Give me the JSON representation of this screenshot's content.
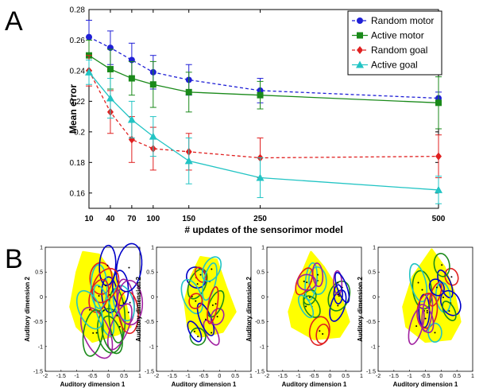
{
  "panels": {
    "a_letter": "A",
    "b_letter": "B"
  },
  "chart_data": [
    {
      "type": "line",
      "panel": "A",
      "xlabel": "# updates of the sensorimor model",
      "ylabel": "Mean error",
      "x": [
        10,
        40,
        70,
        100,
        150,
        250,
        500
      ],
      "xticks": [
        10,
        40,
        70,
        100,
        150,
        250,
        500
      ],
      "yticks": [
        0.16,
        0.18,
        0.2,
        0.22,
        0.24,
        0.26,
        0.28
      ],
      "ylim": [
        0.15,
        0.28
      ],
      "grid": false,
      "legend_position": "top-right",
      "series": [
        {
          "name": "Random motor",
          "color": "#1f1fd6",
          "marker": "circle",
          "dash": true,
          "values": [
            0.262,
            0.255,
            0.247,
            0.239,
            0.234,
            0.227,
            0.222
          ],
          "err": [
            0.011,
            0.011,
            0.011,
            0.011,
            0.01,
            0.008,
            0.004
          ]
        },
        {
          "name": "Active motor",
          "color": "#1a8a1a",
          "marker": "square",
          "dash": false,
          "values": [
            0.25,
            0.241,
            0.235,
            0.231,
            0.226,
            0.224,
            0.219
          ],
          "err": [
            0.01,
            0.013,
            0.011,
            0.015,
            0.013,
            0.009,
            0.017
          ]
        },
        {
          "name": "Random goal",
          "color": "#e02020",
          "marker": "diamond",
          "dash": true,
          "values": [
            0.24,
            0.213,
            0.195,
            0.189,
            0.187,
            0.183,
            0.184
          ],
          "err": [
            0.01,
            0.014,
            0.015,
            0.014,
            0.012,
            0.013,
            0.014
          ]
        },
        {
          "name": "Active goal",
          "color": "#22c4c4",
          "marker": "triangle",
          "dash": false,
          "values": [
            0.239,
            0.222,
            0.208,
            0.197,
            0.181,
            0.17,
            0.162
          ],
          "err": [
            0.008,
            0.013,
            0.012,
            0.013,
            0.015,
            0.013,
            0.009
          ]
        }
      ]
    },
    {
      "type": "scatter",
      "panel": "B",
      "subplots": 4,
      "xlabel": "Auditory dimension 1",
      "ylabel": "Auditory dimension 2",
      "xticks": [
        -2,
        -1.5,
        -1,
        -0.5,
        0,
        0.5,
        1
      ],
      "yticks": [
        -1.5,
        -1,
        -0.5,
        0,
        0.5,
        1
      ],
      "xlim": [
        -2,
        1
      ],
      "ylim": [
        -1.5,
        1
      ],
      "background_color": "#ffff00",
      "ellipse_colors": [
        "#0000c8",
        "#1a8a1a",
        "#e02020",
        "#22c4c4",
        "#a020a0"
      ]
    }
  ]
}
